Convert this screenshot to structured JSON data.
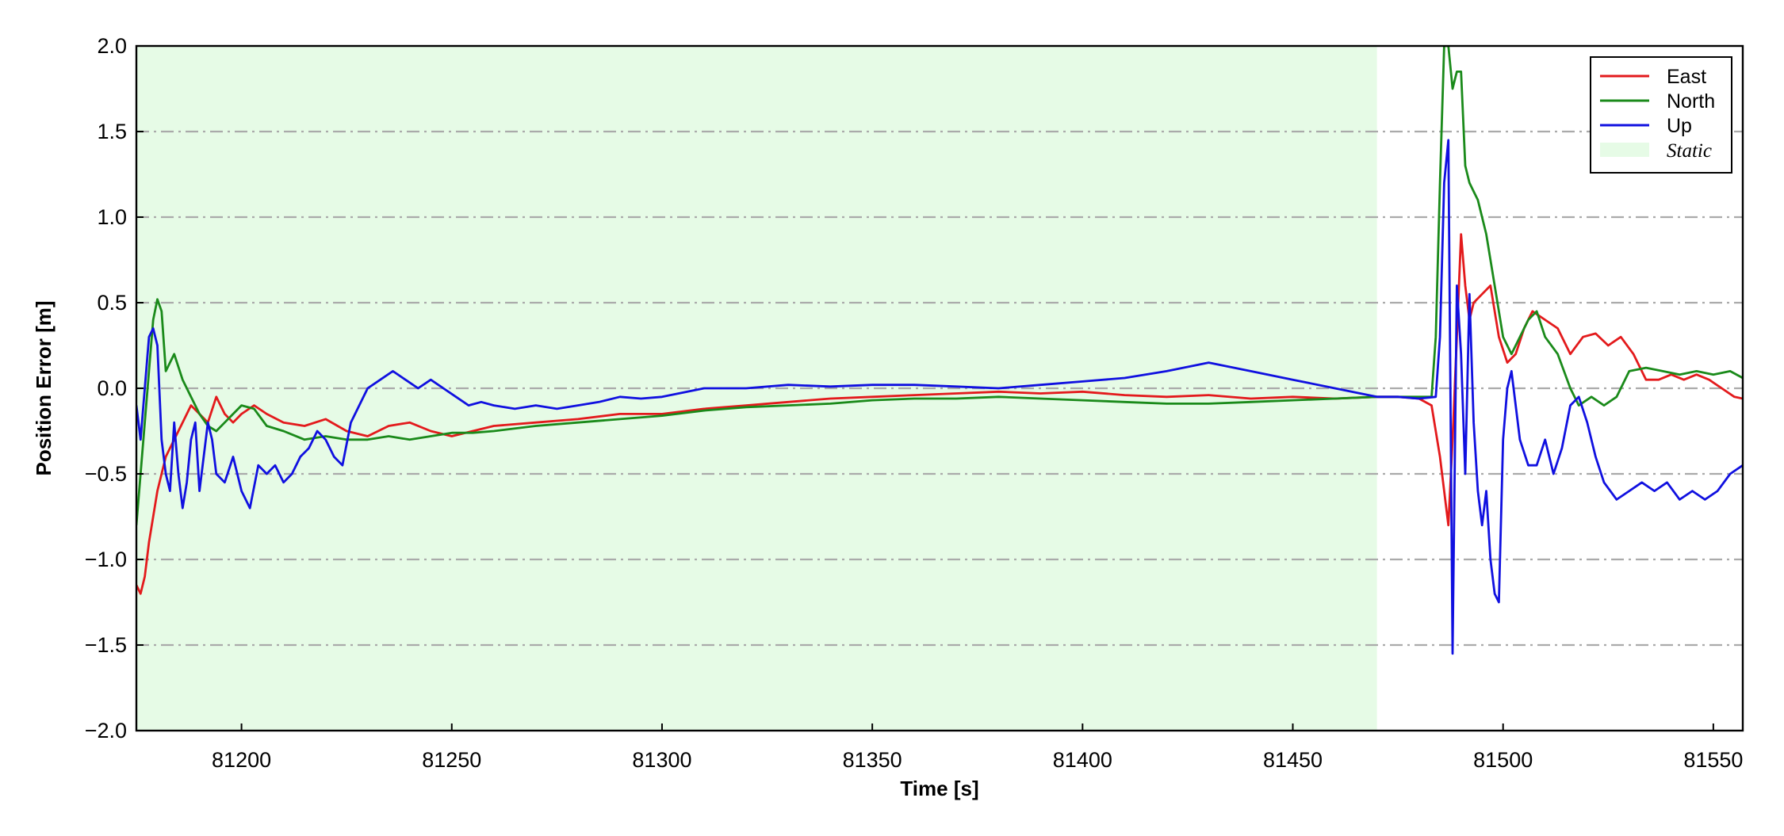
{
  "chart_data": {
    "type": "line",
    "xlabel": "Time [s]",
    "ylabel": "Position Error [m]",
    "xlim": [
      81175,
      81557
    ],
    "ylim": [
      -2.0,
      2.0
    ],
    "x_ticks": [
      81200,
      81250,
      81300,
      81350,
      81400,
      81450,
      81500,
      81550
    ],
    "x_tick_labels": [
      "81200",
      "81250",
      "81300",
      "81350",
      "81400",
      "81450",
      "81500",
      "81550"
    ],
    "y_ticks": [
      -2.0,
      -1.5,
      -1.0,
      -0.5,
      0.0,
      0.5,
      1.0,
      1.5,
      2.0
    ],
    "y_tick_labels": [
      "−2.0",
      "−1.5",
      "−1.0",
      "−0.5",
      "0.0",
      "0.5",
      "1.0",
      "1.5",
      "2.0"
    ],
    "grid": "horizontal dash-dot",
    "legend_position": "top-right",
    "static_region": {
      "label": "Static",
      "x_start": 81175,
      "x_end": 81470,
      "color": "#e6fbe6"
    },
    "series": [
      {
        "name": "East",
        "color": "#e31a1c",
        "x": [
          81175,
          81176,
          81177,
          81178,
          81180,
          81182,
          81184,
          81186,
          81188,
          81190,
          81192,
          81194,
          81196,
          81198,
          81200,
          81203,
          81206,
          81210,
          81215,
          81220,
          81225,
          81230,
          81235,
          81240,
          81245,
          81250,
          81255,
          81260,
          81270,
          81280,
          81290,
          81300,
          81310,
          81320,
          81330,
          81340,
          81350,
          81360,
          81370,
          81380,
          81390,
          81400,
          81410,
          81420,
          81430,
          81440,
          81450,
          81460,
          81470,
          81475,
          81480,
          81483,
          81485,
          81487,
          81488,
          81489,
          81490,
          81491,
          81492,
          81493,
          81495,
          81497,
          81499,
          81501,
          81503,
          81505,
          81507,
          81510,
          81513,
          81516,
          81519,
          81522,
          81525,
          81528,
          81531,
          81534,
          81537,
          81540,
          81543,
          81546,
          81549,
          81552,
          81555,
          81557
        ],
        "y": [
          -1.15,
          -1.2,
          -1.1,
          -0.9,
          -0.6,
          -0.4,
          -0.3,
          -0.2,
          -0.1,
          -0.15,
          -0.2,
          -0.05,
          -0.15,
          -0.2,
          -0.15,
          -0.1,
          -0.15,
          -0.2,
          -0.22,
          -0.18,
          -0.25,
          -0.28,
          -0.22,
          -0.2,
          -0.25,
          -0.28,
          -0.25,
          -0.22,
          -0.2,
          -0.18,
          -0.15,
          -0.15,
          -0.12,
          -0.1,
          -0.08,
          -0.06,
          -0.05,
          -0.04,
          -0.03,
          -0.02,
          -0.03,
          -0.02,
          -0.04,
          -0.05,
          -0.04,
          -0.06,
          -0.05,
          -0.06,
          -0.05,
          -0.05,
          -0.06,
          -0.1,
          -0.4,
          -0.8,
          -0.3,
          0.3,
          0.9,
          0.6,
          0.4,
          0.5,
          0.55,
          0.6,
          0.3,
          0.15,
          0.2,
          0.35,
          0.45,
          0.4,
          0.35,
          0.2,
          0.3,
          0.32,
          0.25,
          0.3,
          0.2,
          0.05,
          0.05,
          0.08,
          0.05,
          0.08,
          0.05,
          0.0,
          -0.05,
          -0.06
        ]
      },
      {
        "name": "North",
        "color": "#1a8a1a",
        "x": [
          81175,
          81176,
          81177,
          81178,
          81179,
          81180,
          81181,
          81182,
          81184,
          81186,
          81188,
          81190,
          81192,
          81194,
          81196,
          81198,
          81200,
          81203,
          81206,
          81210,
          81215,
          81220,
          81225,
          81230,
          81235,
          81240,
          81245,
          81250,
          81255,
          81260,
          81270,
          81280,
          81290,
          81300,
          81310,
          81320,
          81330,
          81340,
          81350,
          81360,
          81370,
          81380,
          81390,
          81400,
          81410,
          81420,
          81430,
          81440,
          81450,
          81460,
          81470,
          81475,
          81480,
          81483,
          81484,
          81485,
          81486,
          81487,
          81488,
          81489,
          81490,
          81491,
          81492,
          81493,
          81494,
          81496,
          81498,
          81500,
          81502,
          81504,
          81506,
          81508,
          81510,
          81513,
          81516,
          81518,
          81521,
          81524,
          81527,
          81530,
          81534,
          81538,
          81542,
          81546,
          81550,
          81554,
          81557
        ],
        "y": [
          -0.8,
          -0.5,
          -0.2,
          0.1,
          0.4,
          0.52,
          0.45,
          0.1,
          0.2,
          0.05,
          -0.05,
          -0.15,
          -0.22,
          -0.25,
          -0.2,
          -0.15,
          -0.1,
          -0.12,
          -0.22,
          -0.25,
          -0.3,
          -0.28,
          -0.3,
          -0.3,
          -0.28,
          -0.3,
          -0.28,
          -0.26,
          -0.26,
          -0.25,
          -0.22,
          -0.2,
          -0.18,
          -0.16,
          -0.13,
          -0.11,
          -0.1,
          -0.09,
          -0.07,
          -0.06,
          -0.06,
          -0.05,
          -0.06,
          -0.07,
          -0.08,
          -0.09,
          -0.09,
          -0.08,
          -0.07,
          -0.06,
          -0.05,
          -0.05,
          -0.05,
          -0.05,
          0.3,
          1.2,
          2.0,
          2.0,
          1.75,
          1.85,
          1.85,
          1.3,
          1.2,
          1.15,
          1.1,
          0.9,
          0.6,
          0.3,
          0.2,
          0.3,
          0.4,
          0.45,
          0.3,
          0.2,
          0.0,
          -0.1,
          -0.05,
          -0.1,
          -0.05,
          0.1,
          0.12,
          0.1,
          0.08,
          0.1,
          0.08,
          0.1,
          0.06
        ]
      },
      {
        "name": "Up",
        "color": "#1010e0",
        "x": [
          81175,
          81176,
          81177,
          81178,
          81179,
          81180,
          81181,
          81182,
          81183,
          81184,
          81185,
          81186,
          81187,
          81188,
          81189,
          81190,
          81191,
          81192,
          81193,
          81194,
          81196,
          81198,
          81200,
          81202,
          81204,
          81206,
          81208,
          81210,
          81212,
          81214,
          81216,
          81218,
          81220,
          81222,
          81224,
          81226,
          81228,
          81230,
          81233,
          81236,
          81239,
          81242,
          81245,
          81248,
          81251,
          81254,
          81257,
          81260,
          81265,
          81270,
          81275,
          81280,
          81285,
          81290,
          81295,
          81300,
          81310,
          81320,
          81330,
          81340,
          81350,
          81360,
          81370,
          81380,
          81390,
          81400,
          81410,
          81420,
          81430,
          81440,
          81450,
          81460,
          81470,
          81475,
          81480,
          81484,
          81485,
          81486,
          81487,
          81488,
          81489,
          81490,
          81491,
          81492,
          81493,
          81494,
          81495,
          81496,
          81497,
          81498,
          81499,
          81500,
          81501,
          81502,
          81504,
          81506,
          81508,
          81510,
          81512,
          81514,
          81516,
          81518,
          81520,
          81522,
          81524,
          81527,
          81530,
          81533,
          81536,
          81539,
          81542,
          81545,
          81548,
          81551,
          81554,
          81557
        ],
        "y": [
          -0.1,
          -0.3,
          0.0,
          0.3,
          0.35,
          0.25,
          -0.3,
          -0.5,
          -0.6,
          -0.2,
          -0.5,
          -0.7,
          -0.55,
          -0.3,
          -0.2,
          -0.6,
          -0.4,
          -0.2,
          -0.3,
          -0.5,
          -0.55,
          -0.4,
          -0.6,
          -0.7,
          -0.45,
          -0.5,
          -0.45,
          -0.55,
          -0.5,
          -0.4,
          -0.35,
          -0.25,
          -0.3,
          -0.4,
          -0.45,
          -0.2,
          -0.1,
          0.0,
          0.05,
          0.1,
          0.05,
          0.0,
          0.05,
          0.0,
          -0.05,
          -0.1,
          -0.08,
          -0.1,
          -0.12,
          -0.1,
          -0.12,
          -0.1,
          -0.08,
          -0.05,
          -0.06,
          -0.05,
          0.0,
          0.0,
          0.02,
          0.01,
          0.02,
          0.02,
          0.01,
          0.0,
          0.02,
          0.04,
          0.06,
          0.1,
          0.15,
          0.1,
          0.05,
          0.0,
          -0.05,
          -0.05,
          -0.06,
          -0.05,
          0.3,
          1.2,
          1.45,
          -1.55,
          0.6,
          0.2,
          -0.5,
          0.55,
          -0.2,
          -0.6,
          -0.8,
          -0.6,
          -1.0,
          -1.2,
          -1.25,
          -0.3,
          0.0,
          0.1,
          -0.3,
          -0.45,
          -0.45,
          -0.3,
          -0.5,
          -0.35,
          -0.1,
          -0.05,
          -0.2,
          -0.4,
          -0.55,
          -0.65,
          -0.6,
          -0.55,
          -0.6,
          -0.55,
          -0.65,
          -0.6,
          -0.65,
          -0.6,
          -0.5,
          -0.45
        ]
      }
    ]
  }
}
